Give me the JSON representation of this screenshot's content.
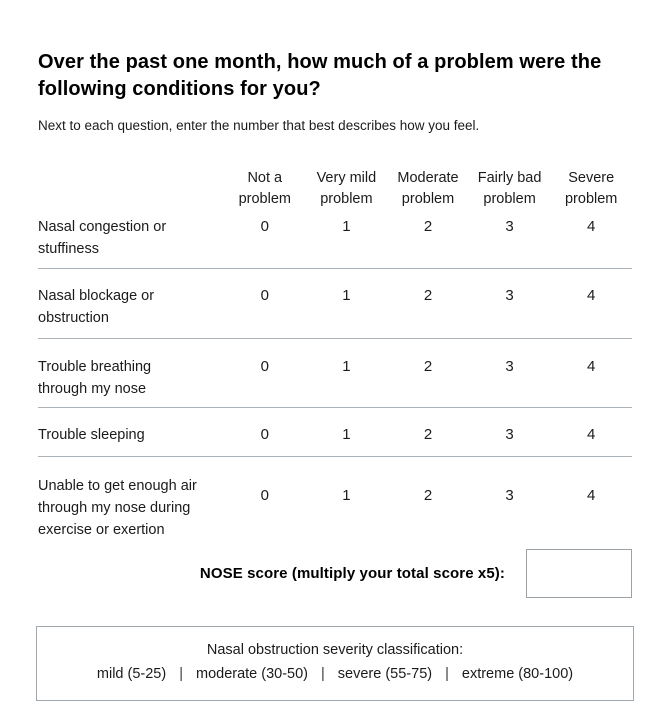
{
  "header": {
    "title": "Over the past one month, how much of a problem were the following conditions for you?",
    "instructions": "Next to each question, enter the number that best describes how you feel."
  },
  "table": {
    "columns": [
      "Not a problem",
      "Very mild problem",
      "Moderate problem",
      "Fairly bad problem",
      "Severe problem"
    ],
    "rows": [
      {
        "label": "Nasal congestion or stuffiness",
        "values": [
          "0",
          "1",
          "2",
          "3",
          "4"
        ]
      },
      {
        "label": "Nasal blockage or obstruction",
        "values": [
          "0",
          "1",
          "2",
          "3",
          "4"
        ]
      },
      {
        "label": "Trouble breathing through my nose",
        "values": [
          "0",
          "1",
          "2",
          "3",
          "4"
        ]
      },
      {
        "label": "Trouble sleeping",
        "values": [
          "0",
          "1",
          "2",
          "3",
          "4"
        ]
      },
      {
        "label": "Unable to get enough air through my nose during exercise or exertion",
        "values": [
          "0",
          "1",
          "2",
          "3",
          "4"
        ]
      }
    ]
  },
  "score": {
    "label": "NOSE score (multiply your total score x5):",
    "value": ""
  },
  "classification": {
    "title": "Nasal obstruction severity classification:",
    "levels": [
      "mild (5-25)",
      "moderate (30-50)",
      "severe (55-75)",
      "extreme (80-100)"
    ],
    "separator": "|"
  },
  "colors": {
    "text": "#1b1b1b",
    "title": "#000000",
    "divider": "#aab1b7",
    "box_border": "#9aa2a8",
    "background": "#ffffff"
  }
}
